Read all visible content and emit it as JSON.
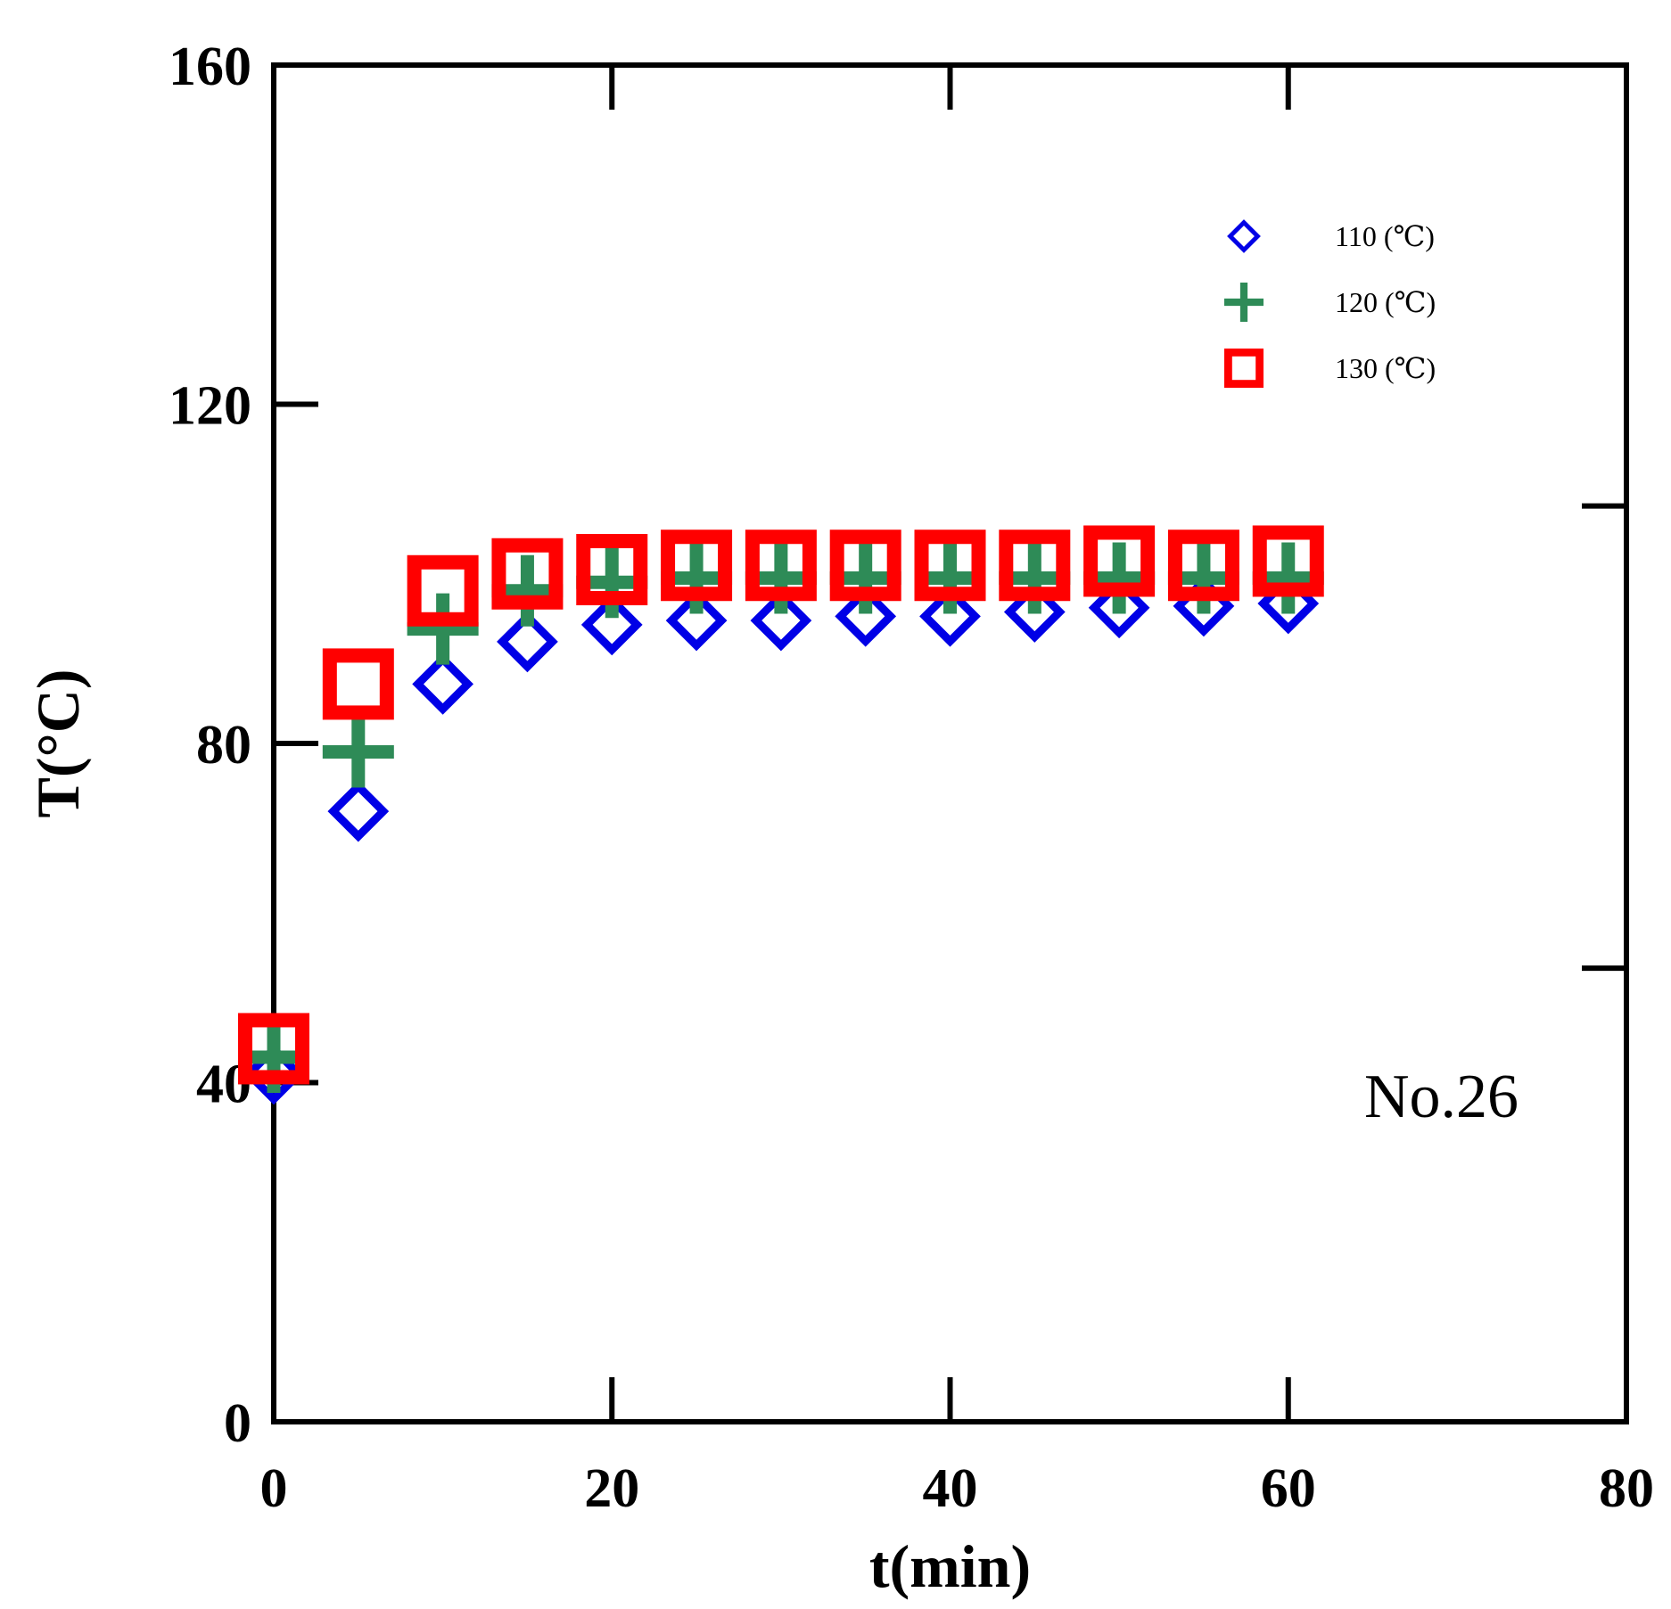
{
  "chart_data": {
    "type": "scatter",
    "title": "",
    "xlabel": "t(min)",
    "ylabel": "T(°C)",
    "xlim": [
      0,
      80
    ],
    "ylim": [
      0,
      160
    ],
    "xticks": [
      0,
      20,
      40,
      60,
      80
    ],
    "yticks": [
      0,
      40,
      80,
      120,
      160
    ],
    "xtick_labels": [
      "0",
      "20",
      "40",
      "60",
      "80"
    ],
    "ytick_labels": [
      "0",
      "40",
      "80",
      "120",
      "160"
    ],
    "grid": false,
    "legend_position": "top-right",
    "annotation": "No.26",
    "x": [
      0,
      5,
      10,
      15,
      20,
      25,
      30,
      35,
      40,
      45,
      50,
      55,
      60
    ],
    "series": [
      {
        "name": "110 (℃)",
        "marker": "diamond",
        "color": "#0000e6",
        "values": [
          41,
          72,
          87,
          92,
          94,
          94.5,
          94.5,
          95,
          95,
          95.5,
          96,
          96.2,
          96.5
        ]
      },
      {
        "name": "120 (℃)",
        "marker": "plus",
        "color": "#2e8b57",
        "values": [
          43,
          79,
          93.5,
          98,
          99,
          99.5,
          99.5,
          99.5,
          99.5,
          99.5,
          99.5,
          99.5,
          99.5
        ]
      },
      {
        "name": "130 (℃)",
        "marker": "square",
        "color": "#ff0000",
        "values": [
          44,
          87,
          98,
          100,
          100.5,
          101,
          101,
          101,
          101,
          101,
          101.5,
          101,
          101.5
        ]
      }
    ]
  }
}
